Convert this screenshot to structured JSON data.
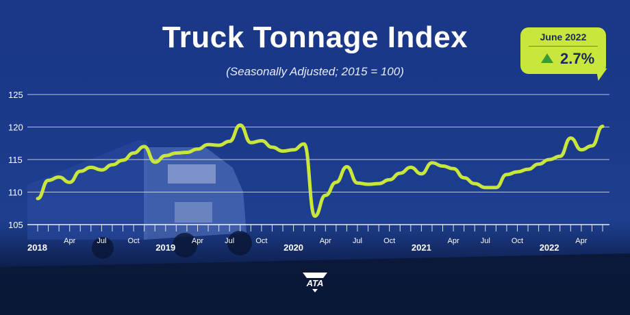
{
  "chart_data": {
    "type": "line",
    "title": "Truck Tonnage Index",
    "subtitle": "(Seasonally Adjusted; 2015 = 100)",
    "ylim": [
      105,
      125
    ],
    "yticks": [
      "105",
      "110",
      "115",
      "120",
      "125"
    ],
    "x_labels": [
      {
        "index": 0,
        "label": "2018",
        "year": true
      },
      {
        "index": 3,
        "label": "Apr",
        "year": false
      },
      {
        "index": 6,
        "label": "Jul",
        "year": false
      },
      {
        "index": 9,
        "label": "Oct",
        "year": false
      },
      {
        "index": 12,
        "label": "2019",
        "year": true
      },
      {
        "index": 15,
        "label": "Apr",
        "year": false
      },
      {
        "index": 18,
        "label": "Jul",
        "year": false
      },
      {
        "index": 21,
        "label": "Oct",
        "year": false
      },
      {
        "index": 24,
        "label": "2020",
        "year": true
      },
      {
        "index": 27,
        "label": "Apr",
        "year": false
      },
      {
        "index": 30,
        "label": "Jul",
        "year": false
      },
      {
        "index": 33,
        "label": "Oct",
        "year": false
      },
      {
        "index": 36,
        "label": "2021",
        "year": true
      },
      {
        "index": 39,
        "label": "Apr",
        "year": false
      },
      {
        "index": 42,
        "label": "Jul",
        "year": false
      },
      {
        "index": 45,
        "label": "Oct",
        "year": false
      },
      {
        "index": 48,
        "label": "2022",
        "year": true
      },
      {
        "index": 51,
        "label": "Apr",
        "year": false
      }
    ],
    "x": [
      "2018-01",
      "2018-02",
      "2018-03",
      "2018-04",
      "2018-05",
      "2018-06",
      "2018-07",
      "2018-08",
      "2018-09",
      "2018-10",
      "2018-11",
      "2018-12",
      "2019-01",
      "2019-02",
      "2019-03",
      "2019-04",
      "2019-05",
      "2019-06",
      "2019-07",
      "2019-08",
      "2019-09",
      "2019-10",
      "2019-11",
      "2019-12",
      "2020-01",
      "2020-02",
      "2020-03",
      "2020-04",
      "2020-05",
      "2020-06",
      "2020-07",
      "2020-08",
      "2020-09",
      "2020-10",
      "2020-11",
      "2020-12",
      "2021-01",
      "2021-02",
      "2021-03",
      "2021-04",
      "2021-05",
      "2021-06",
      "2021-07",
      "2021-08",
      "2021-09",
      "2021-10",
      "2021-11",
      "2021-12",
      "2022-01",
      "2022-02",
      "2022-03",
      "2022-04",
      "2022-05",
      "2022-06"
    ],
    "series": [
      {
        "values": [
          109.0,
          111.8,
          112.3,
          111.5,
          113.2,
          113.8,
          113.4,
          114.2,
          114.9,
          116.0,
          117.0,
          114.6,
          115.6,
          116.0,
          116.1,
          116.6,
          117.3,
          117.2,
          117.8,
          120.3,
          117.6,
          117.9,
          116.9,
          116.3,
          116.5,
          117.4,
          106.3,
          109.5,
          111.5,
          113.9,
          111.4,
          111.2,
          111.3,
          111.9,
          112.9,
          113.8,
          112.8,
          114.5,
          114.0,
          113.6,
          112.2,
          111.3,
          110.7,
          110.7,
          112.7,
          113.1,
          113.5,
          114.3,
          115.0,
          115.5,
          118.3,
          116.5,
          117.1,
          120.1
        ]
      }
    ],
    "grid": true,
    "colors": {
      "line": "#c8e63c",
      "grid": "#ffffff",
      "axis": "#ffffff"
    }
  },
  "callout": {
    "period": "June 2022",
    "value": "2.7%",
    "direction": "up"
  },
  "logo": {
    "text": "ATA"
  }
}
